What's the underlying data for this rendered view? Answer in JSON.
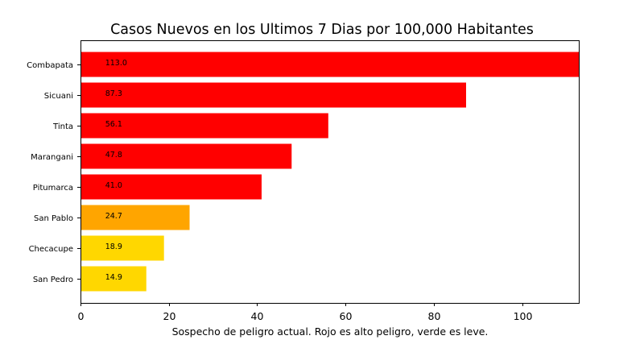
{
  "chart_data": {
    "type": "bar",
    "orientation": "horizontal",
    "title": "Casos Nuevos en los Ultimos 7 Dias por 100,000 Habitantes",
    "xlabel": "Sospecho de peligro actual. Rojo es alto peligro, verde es leve.",
    "ylabel": "",
    "xlim": [
      0,
      113
    ],
    "xticks": [
      0,
      20,
      40,
      60,
      80,
      100
    ],
    "grid": false,
    "categories": [
      "Combapata",
      "Sicuani",
      "Tinta",
      "Marangani",
      "Pitumarca",
      "San Pablo",
      "Checacupe",
      "San Pedro"
    ],
    "values": [
      113.0,
      87.3,
      56.1,
      47.8,
      41.0,
      24.7,
      18.9,
      14.9
    ],
    "value_labels": [
      "113.0",
      "87.3",
      "56.1",
      "47.8",
      "41.0",
      "24.7",
      "18.9",
      "14.9"
    ],
    "colors": [
      "#ff0000",
      "#ff0000",
      "#ff0000",
      "#ff0000",
      "#ff0000",
      "#ffa500",
      "#ffd700",
      "#ffd700"
    ]
  }
}
